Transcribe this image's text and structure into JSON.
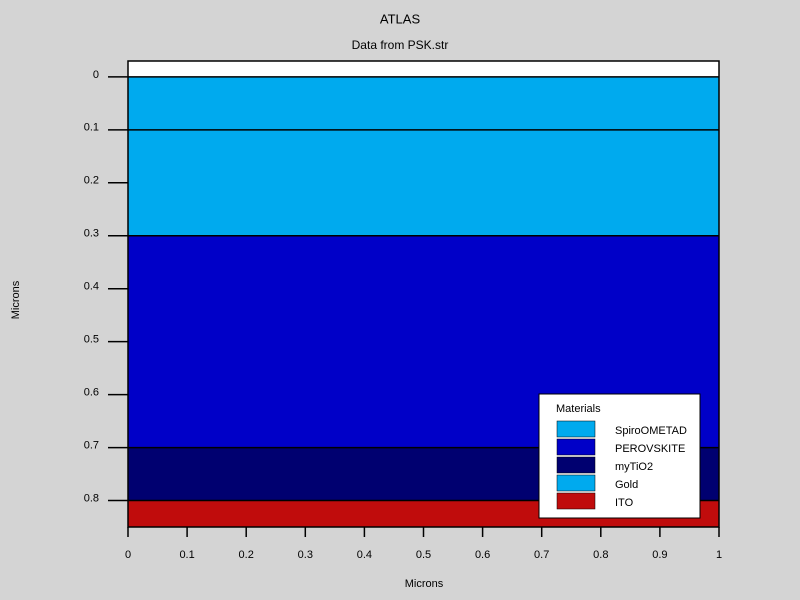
{
  "chart_data": {
    "type": "structure",
    "title": "ATLAS",
    "subtitle": "Data from PSK.str",
    "x_label": "Microns",
    "y_label": "Microns",
    "xlim": [
      0,
      1
    ],
    "xticks": [
      0,
      0.1,
      0.2,
      0.3,
      0.4,
      0.5,
      0.6,
      0.7,
      0.8,
      0.9,
      1
    ],
    "ylim": [
      -0.03,
      0.85
    ],
    "y_inverted": true,
    "yticks": [
      0,
      0.1,
      0.2,
      0.3,
      0.4,
      0.5,
      0.6,
      0.7,
      0.8
    ],
    "legend_title": "Materials",
    "legend_position": "lower right",
    "series": [
      {
        "name": "SpiroOMETAD",
        "color": "#00aaee",
        "values": [
          0.1,
          0.3
        ]
      },
      {
        "name": "PEROVSKITE",
        "color": "#0000c8",
        "values": [
          0.3,
          0.7
        ]
      },
      {
        "name": "myTiO2",
        "color": "#000070",
        "values": [
          0.7,
          0.8
        ]
      },
      {
        "name": "Gold",
        "color": "#00aaee",
        "values": [
          0,
          0.1
        ]
      },
      {
        "name": "ITO",
        "color": "#c00c0c",
        "values": [
          0.8,
          0.85
        ]
      }
    ]
  }
}
